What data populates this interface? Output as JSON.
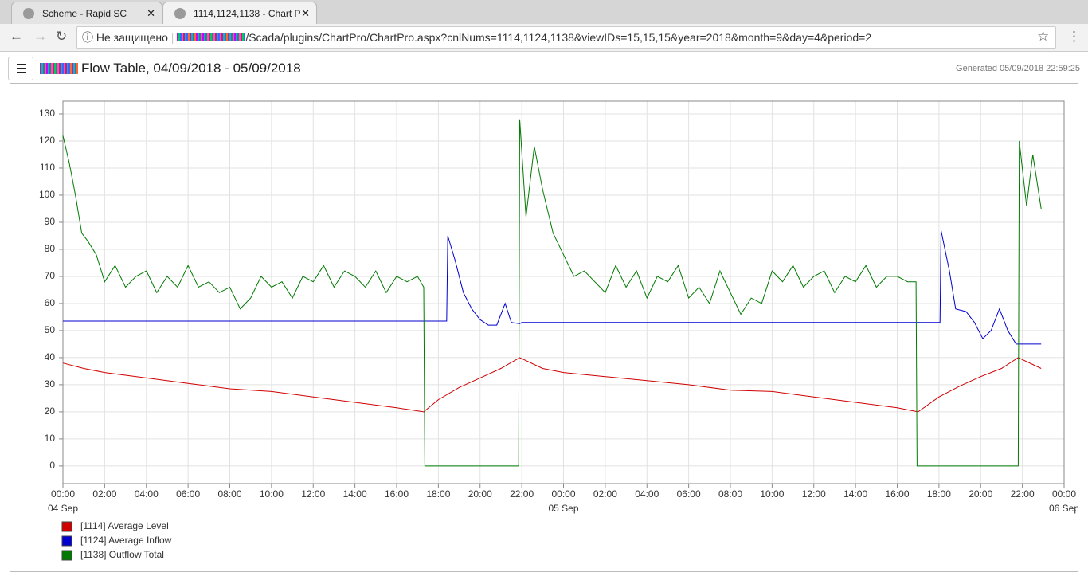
{
  "browser": {
    "tabs": [
      "Scheme - Rapid SC",
      "1114,1124,1138 - Chart P"
    ],
    "security": "Не защищено",
    "url": "/Scada/plugins/ChartPro/ChartPro.aspx?cnlNums=1114,1124,1138&viewIDs=15,15,15&year=2018&month=9&day=4&period=2"
  },
  "header": {
    "title": "Flow Table, 04/09/2018 - 05/09/2018",
    "generated": "Generated 05/09/2018 22:59:25"
  },
  "chart_data": {
    "type": "line",
    "xlim": [
      0,
      48
    ],
    "ylim": [
      -6.5,
      134.7
    ],
    "grid": true,
    "legend": "bottom-left",
    "yticks": [
      0,
      10,
      20,
      30,
      40,
      50,
      60,
      70,
      80,
      90,
      100,
      110,
      120,
      130
    ],
    "xticks": [
      {
        "value": 0,
        "label": "00:00"
      },
      {
        "value": 2,
        "label": "02:00"
      },
      {
        "value": 4,
        "label": "04:00"
      },
      {
        "value": 6,
        "label": "06:00"
      },
      {
        "value": 8,
        "label": "08:00"
      },
      {
        "value": 10,
        "label": "10:00"
      },
      {
        "value": 12,
        "label": "12:00"
      },
      {
        "value": 14,
        "label": "14:00"
      },
      {
        "value": 16,
        "label": "16:00"
      },
      {
        "value": 18,
        "label": "18:00"
      },
      {
        "value": 20,
        "label": "20:00"
      },
      {
        "value": 22,
        "label": "22:00"
      },
      {
        "value": 24,
        "label": "00:00"
      },
      {
        "value": 26,
        "label": "02:00"
      },
      {
        "value": 28,
        "label": "04:00"
      },
      {
        "value": 30,
        "label": "06:00"
      },
      {
        "value": 32,
        "label": "08:00"
      },
      {
        "value": 34,
        "label": "10:00"
      },
      {
        "value": 36,
        "label": "12:00"
      },
      {
        "value": 38,
        "label": "14:00"
      },
      {
        "value": 40,
        "label": "16:00"
      },
      {
        "value": 42,
        "label": "18:00"
      },
      {
        "value": 44,
        "label": "20:00"
      },
      {
        "value": 46,
        "label": "22:00"
      },
      {
        "value": 48,
        "label": "00:00"
      }
    ],
    "x_date_labels": [
      {
        "value": 0,
        "label": "04 Sep"
      },
      {
        "value": 24,
        "label": "05 Sep"
      },
      {
        "value": 48,
        "label": "06 Sep"
      }
    ],
    "series": [
      {
        "name": "[1114] Average Level",
        "color": "#d00000",
        "x": [
          0,
          1,
          2,
          4,
          6,
          8,
          10,
          12,
          14,
          16,
          17.3,
          18,
          19,
          20,
          21,
          21.9,
          23,
          24,
          26,
          28,
          30,
          32,
          34,
          36,
          38,
          40,
          41,
          42,
          43,
          44,
          45,
          45.8,
          46.9
        ],
        "values": [
          38,
          36,
          34.5,
          32.5,
          30.5,
          28.5,
          27.5,
          25.5,
          23.5,
          21.5,
          20,
          24.5,
          29,
          32.5,
          36,
          40,
          36,
          34.5,
          33,
          31.5,
          30,
          28,
          27.5,
          25.5,
          23.5,
          21.5,
          20,
          25.5,
          29.5,
          33,
          36,
          40,
          36
        ]
      },
      {
        "name": "[1124] Average Inflow",
        "color": "#0000d0",
        "x": [
          0,
          18.4,
          18.45,
          18.8,
          19.2,
          19.6,
          20,
          20.4,
          20.8,
          21.2,
          21.5,
          21.9,
          22,
          42.05,
          42.1,
          42.5,
          42.8,
          43.3,
          43.7,
          44.1,
          44.5,
          44.9,
          45.3,
          45.7,
          45.85,
          46.9
        ],
        "values": [
          53.5,
          53.5,
          85,
          76,
          64,
          58,
          54,
          52,
          52,
          60,
          53,
          52.5,
          53,
          53,
          87,
          72,
          58,
          57,
          53,
          47,
          50,
          58,
          50,
          45,
          45,
          45
        ]
      },
      {
        "name": "[1138] Outflow Total",
        "color": "#007a00",
        "x": [
          0,
          0.3,
          0.6,
          0.9,
          1.2,
          1.6,
          2,
          2.5,
          3,
          3.5,
          4,
          4.5,
          5,
          5.5,
          6,
          6.5,
          7,
          7.5,
          8,
          8.5,
          9,
          9.5,
          10,
          10.5,
          11,
          11.5,
          12,
          12.5,
          13,
          13.5,
          14,
          14.5,
          15,
          15.5,
          16,
          16.5,
          17,
          17.3,
          17.35,
          21.85,
          21.9,
          22.2,
          22.6,
          23,
          23.5,
          24,
          24.5,
          25,
          25.5,
          26,
          26.5,
          27,
          27.5,
          28,
          28.5,
          29,
          29.5,
          30,
          30.5,
          31,
          31.5,
          32,
          32.5,
          33,
          33.5,
          34,
          34.5,
          35,
          35.5,
          36,
          36.5,
          37,
          37.5,
          38,
          38.5,
          39,
          39.5,
          40,
          40.5,
          40.9,
          40.95,
          45.8,
          45.85,
          46.2,
          46.5,
          46.9
        ],
        "values": [
          122,
          112,
          100,
          86,
          83,
          78,
          68,
          74,
          66,
          70,
          72,
          64,
          70,
          66,
          74,
          66,
          68,
          64,
          66,
          58,
          62,
          70,
          66,
          68,
          62,
          70,
          68,
          74,
          66,
          72,
          70,
          66,
          72,
          64,
          70,
          68,
          70,
          66,
          0,
          0,
          128,
          92,
          118,
          102,
          86,
          78,
          70,
          72,
          68,
          64,
          74,
          66,
          72,
          62,
          70,
          68,
          74,
          62,
          66,
          60,
          72,
          64,
          56,
          62,
          60,
          72,
          68,
          74,
          66,
          70,
          72,
          64,
          70,
          68,
          74,
          66,
          70,
          70,
          68,
          68,
          0,
          0,
          120,
          96,
          115,
          95
        ]
      }
    ]
  }
}
